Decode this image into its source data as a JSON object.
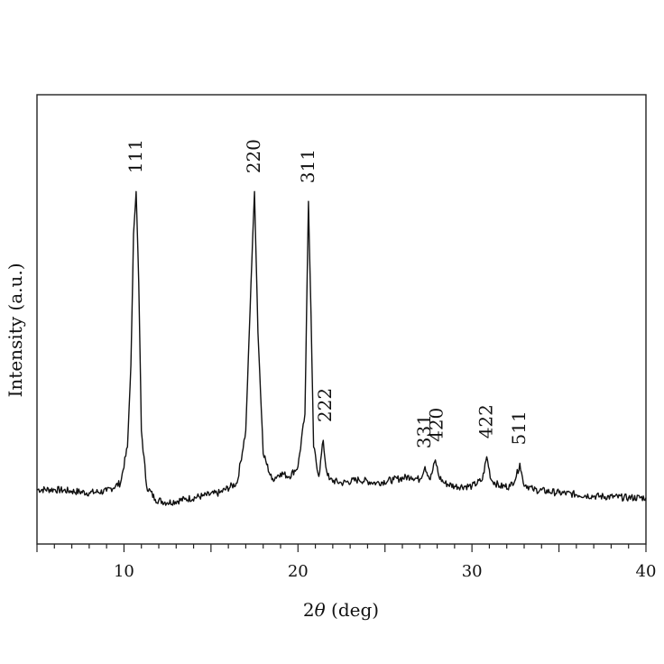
{
  "chart_data": {
    "type": "line",
    "xlabel_prefix": "2",
    "xlabel_symbol": "θ",
    "xlabel_suffix": " (deg)",
    "ylabel": "Intensity (a.u.)",
    "xlim": [
      5,
      40
    ],
    "ylim": [
      0,
      100
    ],
    "x_ticks": [
      "10",
      "20",
      "30",
      "40"
    ],
    "x_tick_values": [
      10,
      20,
      30,
      40
    ],
    "grid": false,
    "series": [
      {
        "x": [
          5.0,
          6.0,
          7.0,
          8.0,
          9.0,
          9.8,
          10.2,
          10.4,
          10.55,
          10.7,
          10.85,
          11.0,
          11.3,
          11.8,
          12.5,
          13.5,
          14.5,
          15.5,
          16.5,
          17.0,
          17.3,
          17.5,
          17.7,
          18.0,
          18.5,
          19.0,
          19.5,
          20.0,
          20.4,
          20.6,
          20.75,
          20.9,
          21.2,
          21.45,
          21.6,
          21.8,
          22.5,
          23.5,
          24.5,
          25.5,
          26.5,
          27.0,
          27.3,
          27.6,
          27.9,
          28.1,
          28.4,
          29.0,
          30.0,
          30.6,
          30.85,
          31.1,
          31.6,
          32.2,
          32.55,
          32.75,
          32.95,
          33.5,
          35.0,
          37.0,
          39.0,
          40.0
        ],
        "y": [
          7,
          7,
          6.5,
          6,
          6.5,
          9,
          20,
          45,
          85,
          98,
          70,
          25,
          8,
          4,
          3,
          4,
          5,
          6,
          9,
          25,
          70,
          98,
          55,
          18,
          10,
          12,
          11,
          14,
          30,
          95,
          60,
          20,
          11,
          22,
          14,
          10,
          9,
          10,
          9,
          10,
          11,
          10,
          14,
          10,
          16,
          11,
          9,
          8,
          8,
          10,
          17,
          10,
          8,
          8,
          11,
          15,
          9,
          7,
          6,
          5,
          4.5,
          4.5
        ]
      }
    ],
    "peak_labels": [
      {
        "text": "111",
        "x": 10.7,
        "y": 98
      },
      {
        "text": "220",
        "x": 17.5,
        "y": 98
      },
      {
        "text": "311",
        "x": 20.6,
        "y": 95
      },
      {
        "text": "222",
        "x": 21.6,
        "y": 22
      },
      {
        "text": "331",
        "x": 27.3,
        "y": 14
      },
      {
        "text": "420",
        "x": 28.0,
        "y": 16
      },
      {
        "text": "422",
        "x": 30.85,
        "y": 17
      },
      {
        "text": "511",
        "x": 32.75,
        "y": 15
      }
    ]
  }
}
